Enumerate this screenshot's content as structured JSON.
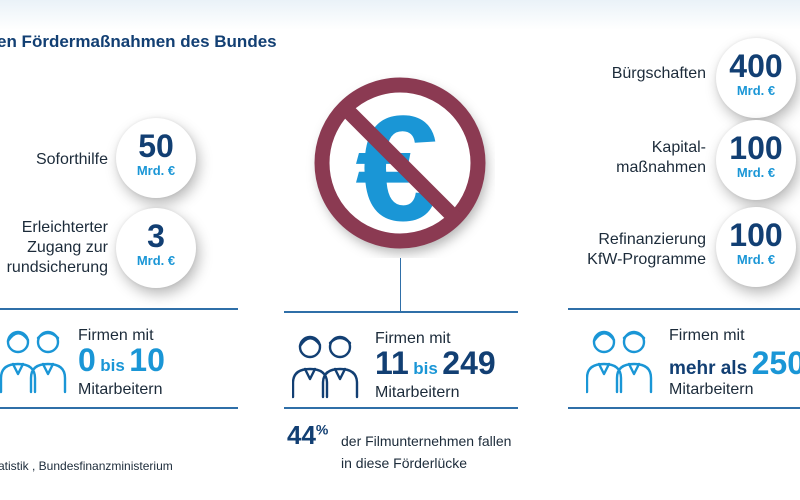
{
  "title": "en Fördermaßnahmen des Bundes",
  "left": {
    "items": [
      {
        "label": "Soforthilfe",
        "value": "50",
        "unit": "Mrd. €"
      },
      {
        "label_lines": [
          "Erleichterter",
          "Zugang zur",
          "rundsicherung"
        ],
        "value": "3",
        "unit": "Mrd. €"
      }
    ],
    "firms_label": "Firmen mit",
    "range_a": "0",
    "range_mid": "bis",
    "range_b": "10",
    "employees": "Mitarbeitern"
  },
  "center": {
    "firms_label": "Firmen mit",
    "range_a": "11",
    "range_mid": "bis",
    "range_b": "249",
    "employees": "Mitarbeitern",
    "stat_value": "44",
    "stat_unit": "%",
    "stat_text_lines": [
      "der Filmunternehmen fallen",
      "in diese Förderlücke"
    ]
  },
  "right": {
    "items": [
      {
        "label": "Bürgschaften",
        "value": "400",
        "unit": "Mrd. €"
      },
      {
        "label_lines": [
          "Kapital-",
          "maßnahmen"
        ],
        "value": "100",
        "unit": "Mrd. €"
      },
      {
        "label_lines": [
          "Refinanzierung",
          "KfW-Programme"
        ],
        "value": "100",
        "unit": "Mrd. €"
      }
    ],
    "firms_label": "Firmen mit",
    "range_prefix": "mehr als",
    "range_value": "250",
    "employees": "Mitarbeitern"
  },
  "source": "atistik , Bundesfinanzministerium",
  "colors": {
    "navy": "#123f73",
    "blue": "#1a96d6",
    "forbidden": "#8b3a52",
    "line": "#2f6fa8"
  }
}
